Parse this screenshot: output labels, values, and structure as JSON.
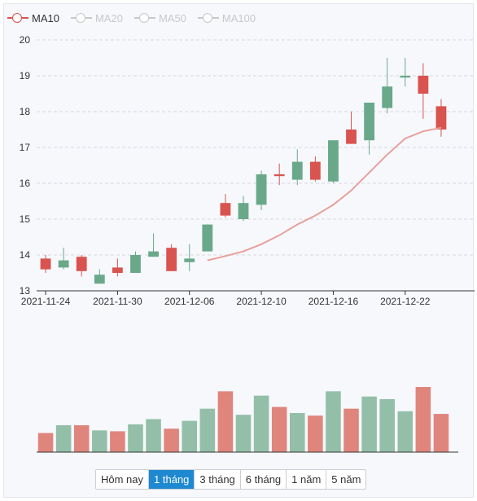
{
  "legend": [
    {
      "label": "MA10",
      "color": "#d9534f",
      "active": true
    },
    {
      "label": "MA20",
      "color": "#c8c8c8",
      "active": false
    },
    {
      "label": "MA50",
      "color": "#c8c8c8",
      "active": false
    },
    {
      "label": "MA100",
      "color": "#c8c8c8",
      "active": false
    }
  ],
  "ranges": [
    {
      "label": "Hôm nay",
      "active": false
    },
    {
      "label": "1 tháng",
      "active": true
    },
    {
      "label": "3 tháng",
      "active": false
    },
    {
      "label": "6 tháng",
      "active": false
    },
    {
      "label": "1 năm",
      "active": false
    },
    {
      "label": "5 năm",
      "active": false
    }
  ],
  "chart_data": {
    "type": "candlestick",
    "ylim": [
      13,
      20
    ],
    "yticks": [
      13,
      14,
      15,
      16,
      17,
      18,
      19,
      20
    ],
    "xtick_labels": [
      "2021-11-24",
      "2021-11-30",
      "2021-12-06",
      "2021-12-10",
      "2021-12-16",
      "2021-12-22"
    ],
    "xtick_index": [
      0,
      4,
      8,
      12,
      16,
      20
    ],
    "up_color": "#6aa88a",
    "down_color": "#d9534f",
    "ohlc": [
      {
        "o": 13.9,
        "h": 14.0,
        "l": 13.5,
        "c": 13.6
      },
      {
        "o": 13.65,
        "h": 14.2,
        "l": 13.6,
        "c": 13.85
      },
      {
        "o": 13.95,
        "h": 14.0,
        "l": 13.4,
        "c": 13.55
      },
      {
        "o": 13.2,
        "h": 13.6,
        "l": 13.2,
        "c": 13.45
      },
      {
        "o": 13.65,
        "h": 13.9,
        "l": 13.4,
        "c": 13.5
      },
      {
        "o": 13.5,
        "h": 14.1,
        "l": 13.5,
        "c": 14.0
      },
      {
        "o": 13.95,
        "h": 14.6,
        "l": 13.95,
        "c": 14.1
      },
      {
        "o": 14.2,
        "h": 14.3,
        "l": 13.55,
        "c": 13.55
      },
      {
        "o": 13.8,
        "h": 14.3,
        "l": 13.55,
        "c": 13.9
      },
      {
        "o": 14.1,
        "h": 14.85,
        "l": 14.1,
        "c": 14.85
      },
      {
        "o": 15.45,
        "h": 15.7,
        "l": 15.05,
        "c": 15.1
      },
      {
        "o": 15.0,
        "h": 15.65,
        "l": 14.95,
        "c": 15.45
      },
      {
        "o": 15.4,
        "h": 16.35,
        "l": 15.25,
        "c": 16.25
      },
      {
        "o": 16.25,
        "h": 16.55,
        "l": 15.95,
        "c": 16.2
      },
      {
        "o": 16.1,
        "h": 16.95,
        "l": 15.95,
        "c": 16.6
      },
      {
        "o": 16.6,
        "h": 16.75,
        "l": 16.05,
        "c": 16.1
      },
      {
        "o": 16.05,
        "h": 17.2,
        "l": 16.0,
        "c": 17.2
      },
      {
        "o": 17.5,
        "h": 18.0,
        "l": 17.1,
        "c": 17.1
      },
      {
        "o": 17.2,
        "h": 18.25,
        "l": 16.8,
        "c": 18.25
      },
      {
        "o": 18.1,
        "h": 19.5,
        "l": 17.95,
        "c": 18.7
      },
      {
        "o": 18.95,
        "h": 19.5,
        "l": 18.7,
        "c": 19.0
      },
      {
        "o": 19.0,
        "h": 19.35,
        "l": 17.8,
        "c": 18.5
      },
      {
        "o": 18.15,
        "h": 18.35,
        "l": 17.3,
        "c": 17.5
      }
    ],
    "ma10": [
      null,
      null,
      null,
      null,
      null,
      null,
      null,
      null,
      null,
      13.85,
      13.97,
      14.1,
      14.3,
      14.55,
      14.85,
      15.1,
      15.4,
      15.8,
      16.3,
      16.8,
      17.25,
      17.45,
      17.55
    ],
    "volume": [
      22,
      31,
      31,
      25,
      24,
      32,
      38,
      27,
      36,
      50,
      70,
      43,
      65,
      52,
      45,
      42,
      70,
      50,
      64,
      61,
      47,
      75,
      44
    ]
  }
}
